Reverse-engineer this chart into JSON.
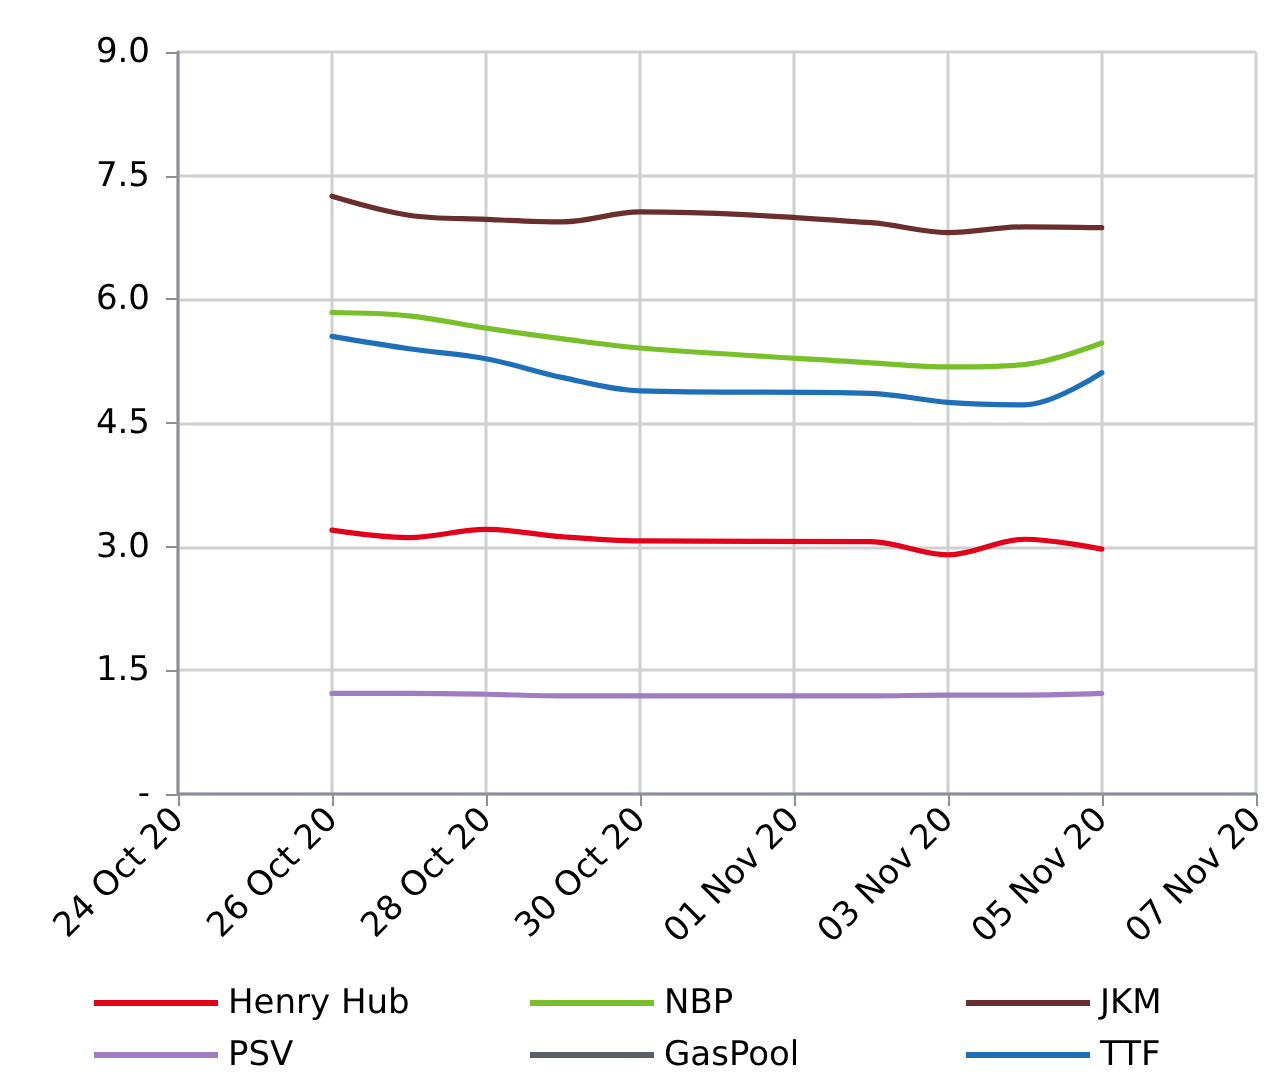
{
  "chart_data": {
    "type": "line",
    "x": [
      "--10-26",
      "--10-27",
      "--10-28",
      "--10-29",
      "--10-30",
      "--11-02",
      "--11-03",
      "--11-04",
      "--11-05"
    ],
    "series": [
      {
        "name": "Henry Hub",
        "color": "#e3001b",
        "values": [
          3.2,
          3.11,
          3.21,
          3.12,
          3.07,
          3.06,
          2.9,
          3.09,
          2.97
        ]
      },
      {
        "name": "NBP",
        "color": "#77c02a",
        "values": [
          5.84,
          5.8,
          5.65,
          5.52,
          5.41,
          5.23,
          5.18,
          5.21,
          5.47
        ]
      },
      {
        "name": "JKM",
        "color": "#6b2e2e",
        "values": [
          7.25,
          7.02,
          6.97,
          6.94,
          7.06,
          6.93,
          6.81,
          6.88,
          6.87
        ]
      },
      {
        "name": "PSV",
        "color": "#a07cc0",
        "values": [
          1.22,
          1.22,
          1.21,
          1.19,
          1.19,
          1.19,
          1.2,
          1.2,
          1.22
        ]
      },
      {
        "name": "GasPool",
        "color": "#5b6066",
        "values": [
          null,
          null,
          null,
          null,
          null,
          null,
          null,
          null,
          null
        ]
      },
      {
        "name": "TTF",
        "color": "#1f6fb8",
        "values": [
          5.55,
          5.4,
          5.28,
          5.05,
          4.89,
          4.86,
          4.75,
          4.72,
          5.11
        ]
      }
    ],
    "xlim": [
      "--10-24",
      "--11-07"
    ],
    "xticks": [
      {
        "value": "--10-24",
        "label": "24 Oct 20"
      },
      {
        "value": "--10-26",
        "label": "26 Oct 20"
      },
      {
        "value": "--10-28",
        "label": "28 Oct 20"
      },
      {
        "value": "--10-30",
        "label": "30 Oct 20"
      },
      {
        "value": "--11-01",
        "label": "01 Nov 20"
      },
      {
        "value": "--11-03",
        "label": "03 Nov 20"
      },
      {
        "value": "--11-05",
        "label": "05 Nov 20"
      },
      {
        "value": "--11-07",
        "label": "07 Nov 20"
      }
    ],
    "ylim": [
      0,
      9
    ],
    "yticks": [
      {
        "value": 0,
        "label": "-"
      },
      {
        "value": 1.5,
        "label": "1.5"
      },
      {
        "value": 3,
        "label": "3.0"
      },
      {
        "value": 4.5,
        "label": "4.5"
      },
      {
        "value": 6,
        "label": "6.0"
      },
      {
        "value": 7.5,
        "label": "7.5"
      },
      {
        "value": 9,
        "label": "9.0"
      }
    ],
    "grid": true,
    "legend": "bottom",
    "marker": "none",
    "line_style": "solid"
  }
}
